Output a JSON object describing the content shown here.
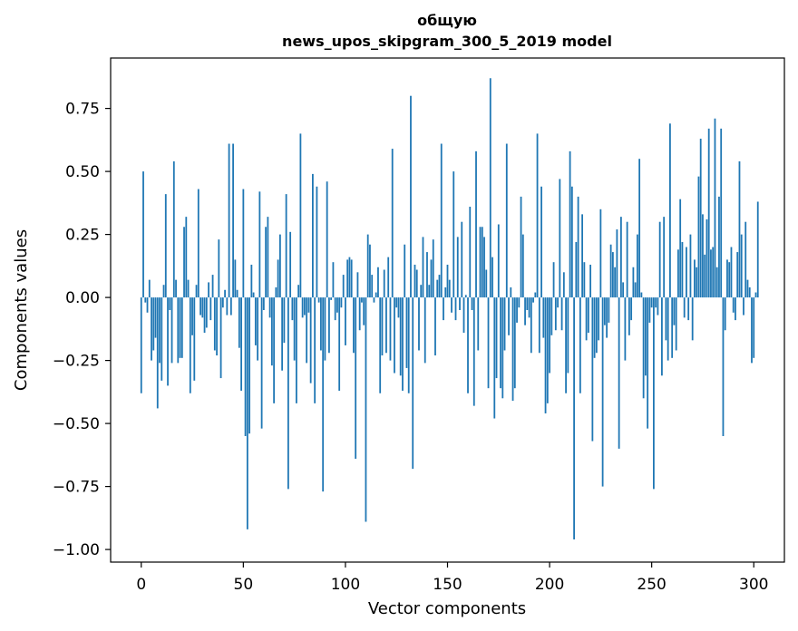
{
  "chart_data": {
    "type": "bar",
    "title_line1": "общую",
    "title_line2": "news_upos_skipgram_300_5_2019 model",
    "xlabel": "Vector components",
    "ylabel": "Components values",
    "xlim": [
      -15,
      315
    ],
    "ylim": [
      -1.05,
      0.95
    ],
    "xticks": [
      0,
      50,
      100,
      150,
      200,
      250,
      300
    ],
    "xtick_labels": [
      "0",
      "50",
      "100",
      "150",
      "200",
      "250",
      "300"
    ],
    "yticks": [
      -1.0,
      -0.75,
      -0.5,
      -0.25,
      0.0,
      0.25,
      0.5,
      0.75
    ],
    "ytick_labels": [
      "−1.00",
      "−0.75",
      "−0.50",
      "−0.25",
      "0.00",
      "0.25",
      "0.50",
      "0.75"
    ],
    "bar_color": "#1f77b4",
    "values": [
      -0.38,
      0.5,
      -0.02,
      -0.06,
      0.07,
      -0.25,
      -0.21,
      -0.16,
      -0.44,
      -0.26,
      -0.33,
      0.05,
      0.41,
      -0.35,
      -0.05,
      -0.26,
      0.54,
      0.07,
      -0.26,
      -0.24,
      -0.24,
      0.28,
      0.32,
      0.07,
      -0.38,
      -0.15,
      -0.33,
      0.05,
      0.43,
      -0.07,
      -0.08,
      -0.14,
      -0.12,
      0.06,
      -0.09,
      0.09,
      -0.21,
      -0.23,
      0.23,
      -0.32,
      -0.04,
      0.03,
      -0.07,
      0.61,
      -0.07,
      0.61,
      0.15,
      0.03,
      -0.2,
      -0.37,
      0.43,
      -0.55,
      -0.92,
      -0.54,
      0.13,
      0.02,
      -0.19,
      -0.25,
      0.42,
      -0.52,
      -0.05,
      0.28,
      0.32,
      -0.08,
      -0.27,
      -0.42,
      0.04,
      0.15,
      0.25,
      -0.29,
      -0.18,
      0.41,
      -0.76,
      0.26,
      -0.09,
      -0.25,
      -0.42,
      0.05,
      0.65,
      -0.08,
      -0.07,
      -0.26,
      -0.06,
      -0.34,
      0.49,
      -0.42,
      0.44,
      -0.02,
      -0.21,
      -0.77,
      -0.25,
      0.46,
      -0.22,
      -0.01,
      0.14,
      -0.09,
      -0.06,
      -0.37,
      -0.04,
      0.09,
      -0.19,
      0.15,
      0.16,
      0.15,
      -0.22,
      -0.64,
      0.1,
      -0.13,
      -0.02,
      -0.11,
      -0.89,
      0.25,
      0.21,
      0.09,
      -0.02,
      0.02,
      0.12,
      -0.38,
      -0.23,
      0.11,
      -0.22,
      0.16,
      -0.25,
      0.59,
      -0.3,
      -0.04,
      -0.08,
      -0.31,
      -0.37,
      0.21,
      -0.28,
      -0.38,
      0.8,
      -0.68,
      0.13,
      0.11,
      -0.21,
      0.05,
      0.24,
      -0.26,
      0.18,
      0.05,
      0.15,
      0.23,
      -0.23,
      0.07,
      0.09,
      0.61,
      -0.09,
      0.04,
      0.13,
      0.07,
      -0.06,
      0.5,
      -0.09,
      0.24,
      -0.05,
      0.3,
      -0.14,
      0.01,
      -0.38,
      0.36,
      -0.05,
      -0.43,
      0.58,
      -0.21,
      0.28,
      0.28,
      0.24,
      0.11,
      -0.36,
      0.87,
      0.16,
      -0.48,
      -0.32,
      0.29,
      -0.36,
      -0.4,
      -0.21,
      0.61,
      -0.15,
      0.04,
      -0.41,
      -0.36,
      -0.1,
      -0.04,
      0.4,
      0.25,
      -0.11,
      -0.05,
      -0.08,
      -0.22,
      -0.02,
      0.02,
      0.65,
      -0.22,
      0.44,
      -0.16,
      -0.46,
      -0.42,
      -0.3,
      -0.15,
      0.14,
      -0.13,
      -0.04,
      0.47,
      -0.13,
      0.1,
      -0.38,
      -0.3,
      0.58,
      0.44,
      -0.96,
      0.22,
      0.4,
      -0.38,
      0.33,
      0.14,
      -0.17,
      -0.14,
      0.13,
      -0.57,
      -0.24,
      -0.22,
      -0.17,
      0.35,
      -0.75,
      -0.11,
      -0.16,
      -0.1,
      0.21,
      0.18,
      0.12,
      0.27,
      -0.6,
      0.32,
      0.06,
      -0.25,
      0.3,
      -0.15,
      -0.09,
      0.12,
      0.06,
      0.25,
      0.55,
      0.02,
      -0.4,
      -0.31,
      -0.52,
      -0.1,
      -0.04,
      -0.76,
      -0.04,
      -0.07,
      0.3,
      -0.31,
      0.32,
      -0.17,
      -0.25,
      0.69,
      -0.24,
      -0.11,
      -0.21,
      0.19,
      0.39,
      0.22,
      -0.08,
      0.2,
      -0.09,
      0.25,
      -0.17,
      0.15,
      0.12,
      0.48,
      0.63,
      0.33,
      0.17,
      0.31,
      0.67,
      0.19,
      0.2,
      0.71,
      0.12,
      0.4,
      0.67,
      -0.55,
      -0.13,
      0.15,
      0.14,
      0.2,
      -0.06,
      -0.09,
      0.18,
      0.54,
      0.25,
      -0.07,
      0.3,
      0.07,
      0.04,
      -0.26,
      -0.24,
      0.02,
      0.38
    ]
  }
}
